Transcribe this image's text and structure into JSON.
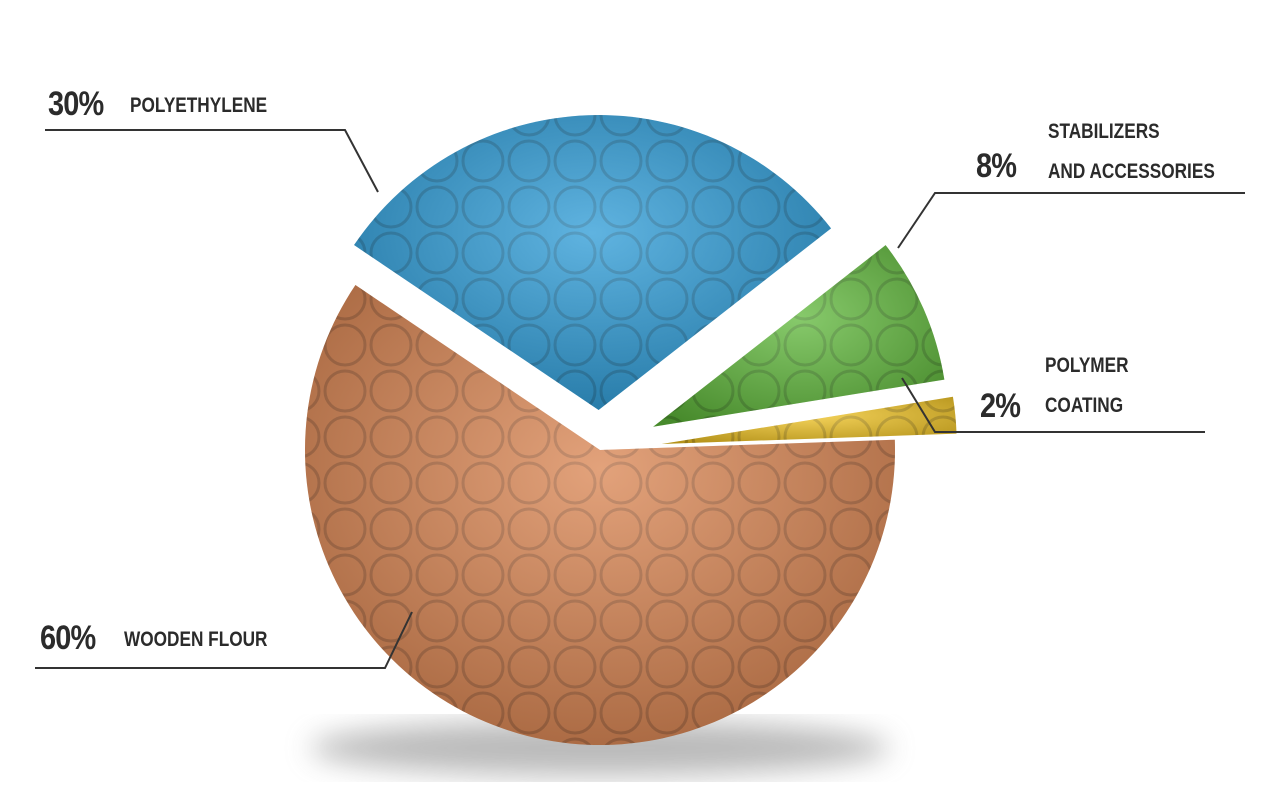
{
  "chart_data": {
    "type": "pie",
    "categories": [
      "WOODEN FLOUR",
      "POLYETHYLENE",
      "STABILIZERS\nAND ACCESSORIES",
      "POLYMER\nCOATING"
    ],
    "values": [
      60,
      30,
      8,
      2
    ],
    "value_labels": [
      "60%",
      "30%",
      "8%",
      "2%"
    ],
    "colors": [
      "#d9834f",
      "#2a9ad6",
      "#5fb83a",
      "#f0c323"
    ]
  }
}
